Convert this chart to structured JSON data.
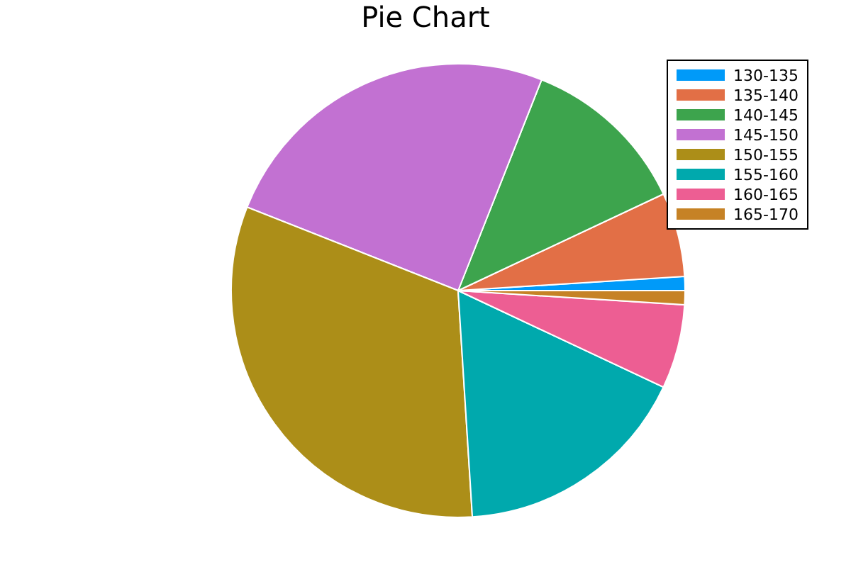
{
  "chart_data": {
    "type": "pie",
    "title": "Pie Chart",
    "categories": [
      "130-135",
      "135-140",
      "140-145",
      "145-150",
      "150-155",
      "155-160",
      "160-165",
      "165-170"
    ],
    "values": [
      1,
      6,
      12,
      25,
      32,
      17,
      6,
      1
    ],
    "colors": [
      "#009af9",
      "#e26f46",
      "#3da44d",
      "#c271d2",
      "#ac8e18",
      "#00a9ad",
      "#ed5e93",
      "#c68225"
    ],
    "legend": "top right"
  }
}
